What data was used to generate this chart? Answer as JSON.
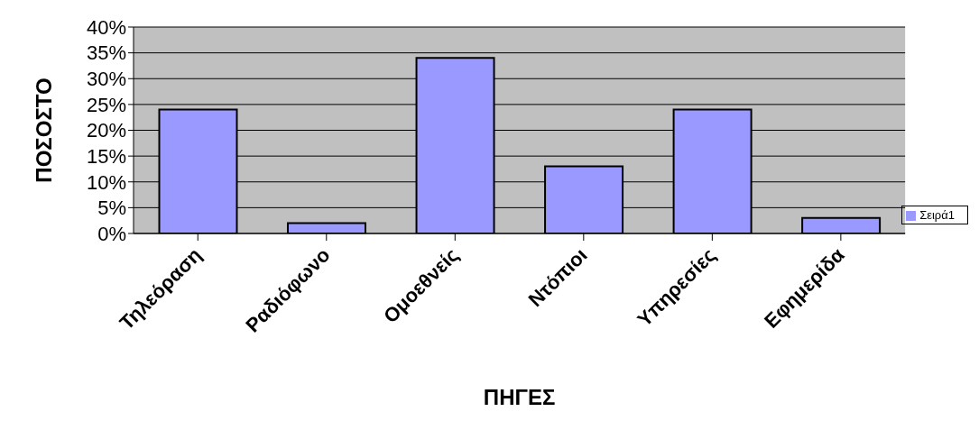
{
  "chart_data": {
    "type": "bar",
    "xlabel": "ΠΗΓΕΣ",
    "ylabel": "ΠΟΣΟΣΤΟ",
    "categories": [
      "Τηλεόραση",
      "Ραδιόφωνο",
      "Ομοεθνείς",
      "Ντόπιοι",
      "Υπηρεσίες",
      "Εφημερίδα"
    ],
    "series": [
      {
        "name": "Σειρά1",
        "color": "#9999ff",
        "values": [
          24,
          2,
          34,
          13,
          24,
          3
        ]
      }
    ],
    "ylim": [
      0,
      40
    ],
    "yticks": [
      {
        "value": 0,
        "label": "0%"
      },
      {
        "value": 5,
        "label": "5%"
      },
      {
        "value": 10,
        "label": "10%"
      },
      {
        "value": 15,
        "label": "15%"
      },
      {
        "value": 20,
        "label": "20%"
      },
      {
        "value": 25,
        "label": "25%"
      },
      {
        "value": 30,
        "label": "30%"
      },
      {
        "value": 35,
        "label": "35%"
      },
      {
        "value": 40,
        "label": "40%"
      }
    ],
    "grid": "y",
    "legend": "right"
  }
}
